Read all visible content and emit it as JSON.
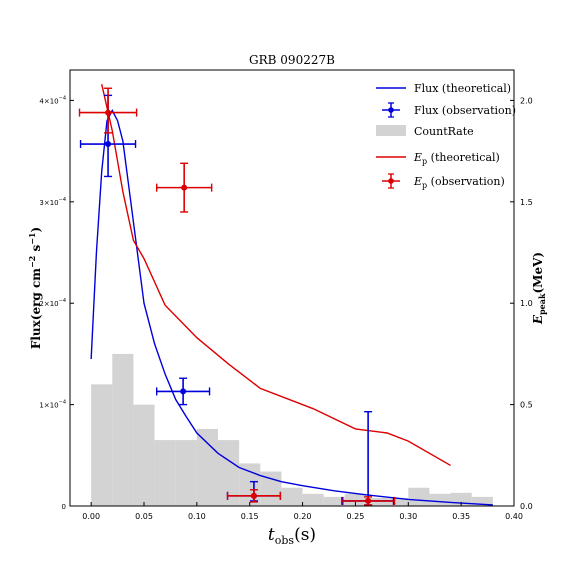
{
  "chart_data": {
    "type": "line",
    "title": "GRB 090227B",
    "xlabel_main": "t",
    "xlabel_sub": "obs",
    "xlabel_unit": "(s)",
    "ylabel_left": "Flux(erg cm",
    "ylabel_left_sup1": "−2",
    "ylabel_left_mid": " s",
    "ylabel_left_sup2": "−1",
    "ylabel_left_end": ")",
    "ylabel_right_main": "E",
    "ylabel_right_sub": "peak",
    "ylabel_right_unit": "(MeV)",
    "xlim": [
      -0.02,
      0.4
    ],
    "ylim_left": [
      0,
      0.00043
    ],
    "ylim_right": [
      0,
      2.15
    ],
    "xticks": [
      0.0,
      0.05,
      0.1,
      0.15,
      0.2,
      0.25,
      0.3,
      0.35,
      0.4
    ],
    "xtick_labels": [
      "0.00",
      "0.05",
      "0.10",
      "0.15",
      "0.20",
      "0.25",
      "0.30",
      "0.35",
      "0.40"
    ],
    "yticks_left": [
      0,
      0.0001,
      0.0002,
      0.0003,
      0.0004
    ],
    "ytick_labels_left": [
      {
        "base": "0",
        "exp": ""
      },
      {
        "base": "1×10",
        "exp": "−4"
      },
      {
        "base": "2×10",
        "exp": "−4"
      },
      {
        "base": "3×10",
        "exp": "−4"
      },
      {
        "base": "4×10",
        "exp": "−4"
      }
    ],
    "yticks_right": [
      0.0,
      0.5,
      1.0,
      1.5,
      2.0
    ],
    "ytick_labels_right": [
      "0.0",
      "0.5",
      "1.0",
      "1.5",
      "2.0"
    ],
    "colors": {
      "flux": "#0000dd",
      "ep": "#dd0000",
      "countrate": "#d3d3d3"
    },
    "countrate": {
      "name": "CountRate",
      "bin_edges": [
        0.0,
        0.02,
        0.04,
        0.06,
        0.08,
        0.1,
        0.12,
        0.14,
        0.16,
        0.18,
        0.2,
        0.22,
        0.24,
        0.26,
        0.28,
        0.3,
        0.32,
        0.34,
        0.36,
        0.38
      ],
      "values": [
        0.00012,
        0.00015,
        0.0001,
        6.5e-05,
        6.5e-05,
        7.6e-05,
        6.5e-05,
        4.2e-05,
        3.4e-05,
        1.8e-05,
        1.2e-05,
        9e-06,
        1.2e-05,
        8e-06,
        8e-06,
        1.8e-05,
        1.2e-05,
        1.3e-05,
        9e-06
      ]
    },
    "flux_theoretical": {
      "name": "Flux (theoretical)",
      "x": [
        0.0,
        0.005,
        0.01,
        0.015,
        0.02,
        0.025,
        0.03,
        0.04,
        0.05,
        0.06,
        0.07,
        0.08,
        0.09,
        0.1,
        0.12,
        0.14,
        0.16,
        0.18,
        0.2,
        0.23,
        0.26,
        0.3,
        0.34,
        0.38
      ],
      "y": [
        0.000145,
        0.00025,
        0.00033,
        0.00038,
        0.00039,
        0.00038,
        0.00036,
        0.00028,
        0.0002,
        0.00016,
        0.00013,
        0.000105,
        8.8e-05,
        7.2e-05,
        5.2e-05,
        3.8e-05,
        3e-05,
        2.4e-05,
        2e-05,
        1.5e-05,
        1.1e-05,
        6.5e-06,
        3.5e-06,
        1e-06
      ]
    },
    "flux_observation": {
      "name": "Flux (observation)",
      "points": [
        {
          "x": 0.016,
          "y": 0.000357,
          "xerr": 0.026,
          "yerr_low": 3.2e-05,
          "yerr_high": 4.8e-05
        },
        {
          "x": 0.087,
          "y": 0.000113,
          "xerr": 0.025,
          "yerr_low": 1.3e-05,
          "yerr_high": 1.3e-05
        },
        {
          "x": 0.154,
          "y": 1e-05,
          "xerr": 0.025,
          "yerr_low": 5e-06,
          "yerr_high": 1.4e-05
        },
        {
          "x": 0.262,
          "y": 5e-06,
          "xerr": 0.024,
          "yerr_low": 4e-06,
          "yerr_high": 8.8e-05
        }
      ]
    },
    "ep_theoretical": {
      "name": "E_p (theoretical)",
      "x": [
        0.01,
        0.02,
        0.03,
        0.04,
        0.05,
        0.07,
        0.1,
        0.13,
        0.16,
        0.21,
        0.25,
        0.28,
        0.3,
        0.34
      ],
      "y": [
        2.08,
        1.85,
        1.55,
        1.31,
        1.22,
        0.99,
        0.83,
        0.7,
        0.58,
        0.48,
        0.38,
        0.36,
        0.32,
        0.2
      ]
    },
    "ep_observation": {
      "name": "E_p (observation)",
      "points": [
        {
          "x": 0.016,
          "y": 1.94,
          "xerr": 0.027,
          "yerr_low": 0.1,
          "yerr_high": 0.12
        },
        {
          "x": 0.088,
          "y": 1.57,
          "xerr": 0.026,
          "yerr_low": 0.12,
          "yerr_high": 0.12
        },
        {
          "x": 0.154,
          "y": 0.05,
          "xerr": 0.025,
          "yerr_low": 0.03,
          "yerr_high": 0.03
        },
        {
          "x": 0.262,
          "y": 0.025,
          "xerr": 0.025,
          "yerr_low": 0.02,
          "yerr_high": 0.02
        }
      ]
    },
    "legend": {
      "placement": "top-right",
      "entries": [
        {
          "key": "flux_line",
          "label": "Flux (theoretical)"
        },
        {
          "key": "flux_obs",
          "label": "Flux (observation)"
        },
        {
          "key": "countrate",
          "label": "CountRate"
        },
        {
          "key": "ep_line",
          "label_main": "E",
          "label_sub": "p",
          "label_rest": " (theoretical)"
        },
        {
          "key": "ep_obs",
          "label_main": "E",
          "label_sub": "p",
          "label_rest": " (observation)"
        }
      ]
    }
  }
}
